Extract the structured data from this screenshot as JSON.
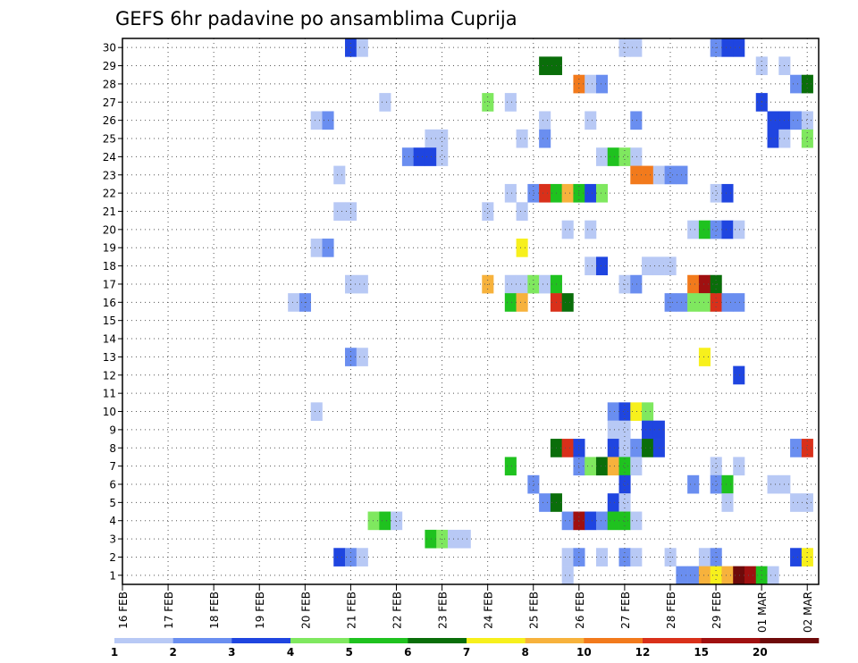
{
  "chart_data": {
    "type": "heatmap",
    "title": "GEFS 6hr padavine po ansamblima Cuprija",
    "xlabel": "",
    "ylabel": "",
    "x_tick_labels": [
      "16 FEB",
      "17 FEB",
      "18 FEB",
      "19 FEB",
      "20 FEB",
      "21 FEB",
      "22 FEB",
      "23 FEB",
      "24 FEB",
      "25 FEB",
      "26 FEB",
      "27 FEB",
      "28 FEB",
      "29 FEB",
      "01 MAR",
      "02 MAR"
    ],
    "y_tick_labels": [
      "1",
      "2",
      "3",
      "4",
      "5",
      "6",
      "7",
      "8",
      "9",
      "10",
      "11",
      "12",
      "13",
      "14",
      "15",
      "16",
      "17",
      "18",
      "19",
      "20",
      "21",
      "22",
      "23",
      "24",
      "25",
      "26",
      "27",
      "28",
      "29",
      "30"
    ],
    "x_unit": "6-hour steps from 16 FEB 00Z",
    "x_range_steps": [
      0,
      61
    ],
    "y_range": [
      0.5,
      30.5
    ],
    "grid": true,
    "colorbar": {
      "position": "bottom",
      "tick_labels": [
        "1",
        "2",
        "3",
        "4",
        "5",
        "6",
        "7",
        "8",
        "10",
        "12",
        "15",
        "20"
      ],
      "colors": [
        "#b8c9f5",
        "#6a8ef0",
        "#1f45e0",
        "#7fe85f",
        "#1fc21f",
        "#0a6e0a",
        "#f7f01c",
        "#f7b23c",
        "#f27a1c",
        "#d9301a",
        "#a01010",
        "#6e0a0a"
      ]
    },
    "cells": [
      {
        "member": 30,
        "step": 20,
        "level": 3
      },
      {
        "member": 30,
        "step": 21,
        "level": 1
      },
      {
        "member": 30,
        "step": 44,
        "level": 1
      },
      {
        "member": 30,
        "step": 45,
        "level": 1
      },
      {
        "member": 30,
        "step": 52,
        "level": 2
      },
      {
        "member": 30,
        "step": 53,
        "level": 3
      },
      {
        "member": 30,
        "step": 54,
        "level": 3
      },
      {
        "member": 29,
        "step": 37,
        "level": 6
      },
      {
        "member": 29,
        "step": 38,
        "level": 6
      },
      {
        "member": 29,
        "step": 56,
        "level": 1
      },
      {
        "member": 29,
        "step": 58,
        "level": 1
      },
      {
        "member": 28,
        "step": 40,
        "level": 9
      },
      {
        "member": 28,
        "step": 41,
        "level": 1
      },
      {
        "member": 28,
        "step": 42,
        "level": 2
      },
      {
        "member": 28,
        "step": 59,
        "level": 2
      },
      {
        "member": 28,
        "step": 60,
        "level": 6
      },
      {
        "member": 27,
        "step": 23,
        "level": 1
      },
      {
        "member": 27,
        "step": 32,
        "level": 4
      },
      {
        "member": 27,
        "step": 34,
        "level": 1
      },
      {
        "member": 27,
        "step": 56,
        "level": 3
      },
      {
        "member": 26,
        "step": 17,
        "level": 1
      },
      {
        "member": 26,
        "step": 18,
        "level": 2
      },
      {
        "member": 26,
        "step": 37,
        "level": 1
      },
      {
        "member": 26,
        "step": 41,
        "level": 1
      },
      {
        "member": 26,
        "step": 45,
        "level": 2
      },
      {
        "member": 26,
        "step": 57,
        "level": 3
      },
      {
        "member": 26,
        "step": 58,
        "level": 3
      },
      {
        "member": 26,
        "step": 59,
        "level": 2
      },
      {
        "member": 26,
        "step": 60,
        "level": 1
      },
      {
        "member": 25,
        "step": 27,
        "level": 1
      },
      {
        "member": 25,
        "step": 28,
        "level": 1
      },
      {
        "member": 25,
        "step": 35,
        "level": 1
      },
      {
        "member": 25,
        "step": 37,
        "level": 2
      },
      {
        "member": 25,
        "step": 57,
        "level": 3
      },
      {
        "member": 25,
        "step": 58,
        "level": 1
      },
      {
        "member": 25,
        "step": 60,
        "level": 4
      },
      {
        "member": 24,
        "step": 25,
        "level": 2
      },
      {
        "member": 24,
        "step": 26,
        "level": 3
      },
      {
        "member": 24,
        "step": 27,
        "level": 3
      },
      {
        "member": 24,
        "step": 28,
        "level": 1
      },
      {
        "member": 24,
        "step": 42,
        "level": 1
      },
      {
        "member": 24,
        "step": 43,
        "level": 5
      },
      {
        "member": 24,
        "step": 44,
        "level": 4
      },
      {
        "member": 24,
        "step": 45,
        "level": 1
      },
      {
        "member": 23,
        "step": 19,
        "level": 1
      },
      {
        "member": 23,
        "step": 45,
        "level": 9
      },
      {
        "member": 23,
        "step": 46,
        "level": 9
      },
      {
        "member": 23,
        "step": 47,
        "level": 1
      },
      {
        "member": 23,
        "step": 48,
        "level": 2
      },
      {
        "member": 23,
        "step": 49,
        "level": 2
      },
      {
        "member": 22,
        "step": 34,
        "level": 1
      },
      {
        "member": 22,
        "step": 36,
        "level": 2
      },
      {
        "member": 22,
        "step": 37,
        "level": 10
      },
      {
        "member": 22,
        "step": 38,
        "level": 5
      },
      {
        "member": 22,
        "step": 39,
        "level": 8
      },
      {
        "member": 22,
        "step": 40,
        "level": 5
      },
      {
        "member": 22,
        "step": 41,
        "level": 3
      },
      {
        "member": 22,
        "step": 42,
        "level": 4
      },
      {
        "member": 22,
        "step": 52,
        "level": 1
      },
      {
        "member": 22,
        "step": 53,
        "level": 3
      },
      {
        "member": 21,
        "step": 19,
        "level": 1
      },
      {
        "member": 21,
        "step": 20,
        "level": 1
      },
      {
        "member": 21,
        "step": 32,
        "level": 1
      },
      {
        "member": 21,
        "step": 35,
        "level": 1
      },
      {
        "member": 20,
        "step": 39,
        "level": 1
      },
      {
        "member": 20,
        "step": 41,
        "level": 1
      },
      {
        "member": 20,
        "step": 50,
        "level": 1
      },
      {
        "member": 20,
        "step": 51,
        "level": 5
      },
      {
        "member": 20,
        "step": 52,
        "level": 2
      },
      {
        "member": 20,
        "step": 53,
        "level": 3
      },
      {
        "member": 20,
        "step": 54,
        "level": 1
      },
      {
        "member": 19,
        "step": 17,
        "level": 1
      },
      {
        "member": 19,
        "step": 18,
        "level": 2
      },
      {
        "member": 19,
        "step": 35,
        "level": 7
      },
      {
        "member": 18,
        "step": 41,
        "level": 1
      },
      {
        "member": 18,
        "step": 42,
        "level": 3
      },
      {
        "member": 18,
        "step": 46,
        "level": 1
      },
      {
        "member": 18,
        "step": 47,
        "level": 1
      },
      {
        "member": 18,
        "step": 48,
        "level": 1
      },
      {
        "member": 17,
        "step": 20,
        "level": 1
      },
      {
        "member": 17,
        "step": 21,
        "level": 1
      },
      {
        "member": 17,
        "step": 32,
        "level": 8
      },
      {
        "member": 17,
        "step": 34,
        "level": 1
      },
      {
        "member": 17,
        "step": 35,
        "level": 1
      },
      {
        "member": 17,
        "step": 36,
        "level": 4
      },
      {
        "member": 17,
        "step": 37,
        "level": 1
      },
      {
        "member": 17,
        "step": 38,
        "level": 5
      },
      {
        "member": 17,
        "step": 44,
        "level": 1
      },
      {
        "member": 17,
        "step": 45,
        "level": 2
      },
      {
        "member": 17,
        "step": 50,
        "level": 9
      },
      {
        "member": 17,
        "step": 51,
        "level": 11
      },
      {
        "member": 17,
        "step": 52,
        "level": 6
      },
      {
        "member": 16,
        "step": 15,
        "level": 1
      },
      {
        "member": 16,
        "step": 16,
        "level": 2
      },
      {
        "member": 16,
        "step": 34,
        "level": 5
      },
      {
        "member": 16,
        "step": 35,
        "level": 8
      },
      {
        "member": 16,
        "step": 38,
        "level": 10
      },
      {
        "member": 16,
        "step": 39,
        "level": 6
      },
      {
        "member": 16,
        "step": 48,
        "level": 2
      },
      {
        "member": 16,
        "step": 49,
        "level": 2
      },
      {
        "member": 16,
        "step": 50,
        "level": 4
      },
      {
        "member": 16,
        "step": 51,
        "level": 4
      },
      {
        "member": 16,
        "step": 52,
        "level": 10
      },
      {
        "member": 16,
        "step": 53,
        "level": 2
      },
      {
        "member": 16,
        "step": 54,
        "level": 2
      },
      {
        "member": 13,
        "step": 20,
        "level": 2
      },
      {
        "member": 13,
        "step": 21,
        "level": 1
      },
      {
        "member": 13,
        "step": 51,
        "level": 7
      },
      {
        "member": 12,
        "step": 54,
        "level": 3
      },
      {
        "member": 10,
        "step": 17,
        "level": 1
      },
      {
        "member": 10,
        "step": 43,
        "level": 2
      },
      {
        "member": 10,
        "step": 44,
        "level": 3
      },
      {
        "member": 10,
        "step": 45,
        "level": 7
      },
      {
        "member": 10,
        "step": 46,
        "level": 4
      },
      {
        "member": 9,
        "step": 43,
        "level": 1
      },
      {
        "member": 9,
        "step": 44,
        "level": 1
      },
      {
        "member": 9,
        "step": 46,
        "level": 3
      },
      {
        "member": 9,
        "step": 47,
        "level": 3
      },
      {
        "member": 8,
        "step": 38,
        "level": 6
      },
      {
        "member": 8,
        "step": 39,
        "level": 10
      },
      {
        "member": 8,
        "step": 40,
        "level": 3
      },
      {
        "member": 8,
        "step": 43,
        "level": 3
      },
      {
        "member": 8,
        "step": 44,
        "level": 1
      },
      {
        "member": 8,
        "step": 45,
        "level": 2
      },
      {
        "member": 8,
        "step": 46,
        "level": 6
      },
      {
        "member": 8,
        "step": 47,
        "level": 3
      },
      {
        "member": 8,
        "step": 59,
        "level": 2
      },
      {
        "member": 8,
        "step": 60,
        "level": 10
      },
      {
        "member": 7,
        "step": 34,
        "level": 5
      },
      {
        "member": 7,
        "step": 40,
        "level": 2
      },
      {
        "member": 7,
        "step": 41,
        "level": 4
      },
      {
        "member": 7,
        "step": 42,
        "level": 6
      },
      {
        "member": 7,
        "step": 43,
        "level": 8
      },
      {
        "member": 7,
        "step": 44,
        "level": 5
      },
      {
        "member": 7,
        "step": 45,
        "level": 1
      },
      {
        "member": 7,
        "step": 52,
        "level": 1
      },
      {
        "member": 7,
        "step": 54,
        "level": 1
      },
      {
        "member": 6,
        "step": 36,
        "level": 2
      },
      {
        "member": 6,
        "step": 44,
        "level": 3
      },
      {
        "member": 6,
        "step": 50,
        "level": 2
      },
      {
        "member": 6,
        "step": 52,
        "level": 2
      },
      {
        "member": 6,
        "step": 53,
        "level": 5
      },
      {
        "member": 6,
        "step": 57,
        "level": 1
      },
      {
        "member": 6,
        "step": 58,
        "level": 1
      },
      {
        "member": 5,
        "step": 37,
        "level": 2
      },
      {
        "member": 5,
        "step": 38,
        "level": 6
      },
      {
        "member": 5,
        "step": 43,
        "level": 3
      },
      {
        "member": 5,
        "step": 44,
        "level": 1
      },
      {
        "member": 5,
        "step": 53,
        "level": 1
      },
      {
        "member": 5,
        "step": 59,
        "level": 1
      },
      {
        "member": 5,
        "step": 60,
        "level": 1
      },
      {
        "member": 4,
        "step": 22,
        "level": 4
      },
      {
        "member": 4,
        "step": 23,
        "level": 5
      },
      {
        "member": 4,
        "step": 24,
        "level": 1
      },
      {
        "member": 4,
        "step": 39,
        "level": 2
      },
      {
        "member": 4,
        "step": 40,
        "level": 11
      },
      {
        "member": 4,
        "step": 41,
        "level": 3
      },
      {
        "member": 4,
        "step": 42,
        "level": 2
      },
      {
        "member": 4,
        "step": 43,
        "level": 5
      },
      {
        "member": 4,
        "step": 44,
        "level": 5
      },
      {
        "member": 4,
        "step": 45,
        "level": 1
      },
      {
        "member": 3,
        "step": 27,
        "level": 5
      },
      {
        "member": 3,
        "step": 28,
        "level": 4
      },
      {
        "member": 3,
        "step": 29,
        "level": 1
      },
      {
        "member": 3,
        "step": 30,
        "level": 1
      },
      {
        "member": 2,
        "step": 19,
        "level": 3
      },
      {
        "member": 2,
        "step": 20,
        "level": 2
      },
      {
        "member": 2,
        "step": 21,
        "level": 1
      },
      {
        "member": 2,
        "step": 39,
        "level": 1
      },
      {
        "member": 2,
        "step": 40,
        "level": 2
      },
      {
        "member": 2,
        "step": 42,
        "level": 1
      },
      {
        "member": 2,
        "step": 44,
        "level": 2
      },
      {
        "member": 2,
        "step": 45,
        "level": 1
      },
      {
        "member": 2,
        "step": 48,
        "level": 1
      },
      {
        "member": 2,
        "step": 51,
        "level": 1
      },
      {
        "member": 2,
        "step": 52,
        "level": 2
      },
      {
        "member": 2,
        "step": 59,
        "level": 3
      },
      {
        "member": 2,
        "step": 60,
        "level": 7
      },
      {
        "member": 1,
        "step": 39,
        "level": 1
      },
      {
        "member": 1,
        "step": 49,
        "level": 2
      },
      {
        "member": 1,
        "step": 50,
        "level": 2
      },
      {
        "member": 1,
        "step": 51,
        "level": 8
      },
      {
        "member": 1,
        "step": 52,
        "level": 7
      },
      {
        "member": 1,
        "step": 53,
        "level": 8
      },
      {
        "member": 1,
        "step": 54,
        "level": 12
      },
      {
        "member": 1,
        "step": 55,
        "level": 11
      },
      {
        "member": 1,
        "step": 56,
        "level": 5
      },
      {
        "member": 1,
        "step": 57,
        "level": 1
      }
    ]
  }
}
